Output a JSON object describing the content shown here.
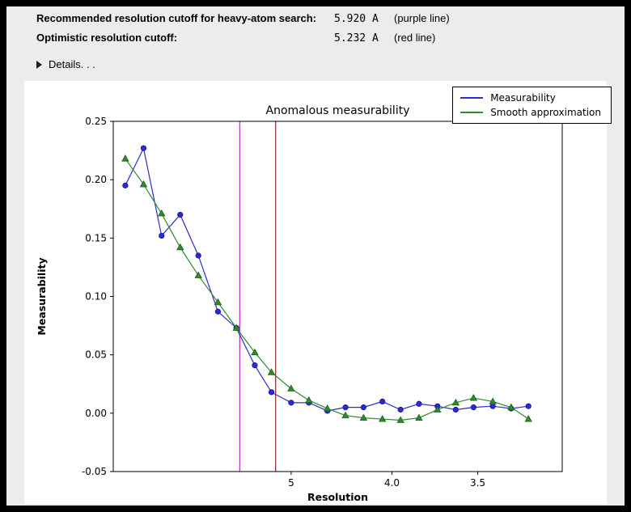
{
  "header": {
    "rows": [
      {
        "label": "Recommended resolution cutoff for heavy-atom search:",
        "value": "5.920 A",
        "note": "(purple line)"
      },
      {
        "label": "Optimistic resolution cutoff:",
        "value": "5.232 A",
        "note": "(red line)"
      }
    ],
    "details_label": "Details. . ."
  },
  "chart_data": {
    "type": "line",
    "title": "Anomalous measurability",
    "xlabel": "Resolution",
    "ylabel": "Measurability",
    "x_scale": "1/d^2 (reciprocal space, resolution in Angstrom, decreasing left to right)",
    "x_resolution_A": [
      18.3,
      11.9,
      9.5,
      8.1,
      7.2,
      6.5,
      6.0,
      5.6,
      5.3,
      5.0,
      4.77,
      4.56,
      4.38,
      4.22,
      4.07,
      3.94,
      3.82,
      3.71,
      3.61,
      3.52,
      3.43,
      3.35,
      3.28
    ],
    "series": [
      {
        "name": "Measurability",
        "color": "#2b2bd0",
        "edge": "#151595",
        "marker": "circle",
        "values": [
          0.195,
          0.227,
          0.152,
          0.17,
          0.135,
          0.087,
          0.073,
          0.041,
          0.018,
          0.009,
          0.009,
          0.002,
          0.005,
          0.005,
          0.01,
          0.003,
          0.008,
          0.006,
          0.003,
          0.005,
          0.006,
          0.004,
          0.006
        ]
      },
      {
        "name": "Smooth approximation",
        "color": "#2e8b2e",
        "edge": "#1d5e1d",
        "marker": "triangle",
        "values": [
          0.218,
          0.196,
          0.171,
          0.142,
          0.118,
          0.095,
          0.073,
          0.052,
          0.035,
          0.021,
          0.011,
          0.004,
          -0.002,
          -0.004,
          -0.005,
          -0.006,
          -0.004,
          0.003,
          0.009,
          0.013,
          0.01,
          0.005,
          -0.005
        ]
      }
    ],
    "vlines": [
      {
        "resolution_A": 5.92,
        "color": "#bb3dbb",
        "label": "purple line"
      },
      {
        "resolution_A": 5.232,
        "color": "#9a3333",
        "label": "red line"
      }
    ],
    "ylim": [
      -0.05,
      0.25
    ],
    "y_ticks": [
      0.25,
      0.2,
      0.15,
      0.1,
      0.05,
      0.0,
      -0.05
    ],
    "x_ticks": [
      {
        "resolution_A": 5.0,
        "label": "5"
      },
      {
        "resolution_A": 4.0,
        "label": "4.0"
      },
      {
        "resolution_A": 3.5,
        "label": "3.5"
      }
    ],
    "x_range_inv_sq": [
      0.0003,
      0.1005
    ],
    "legend_position": "upper right",
    "grid": false
  }
}
